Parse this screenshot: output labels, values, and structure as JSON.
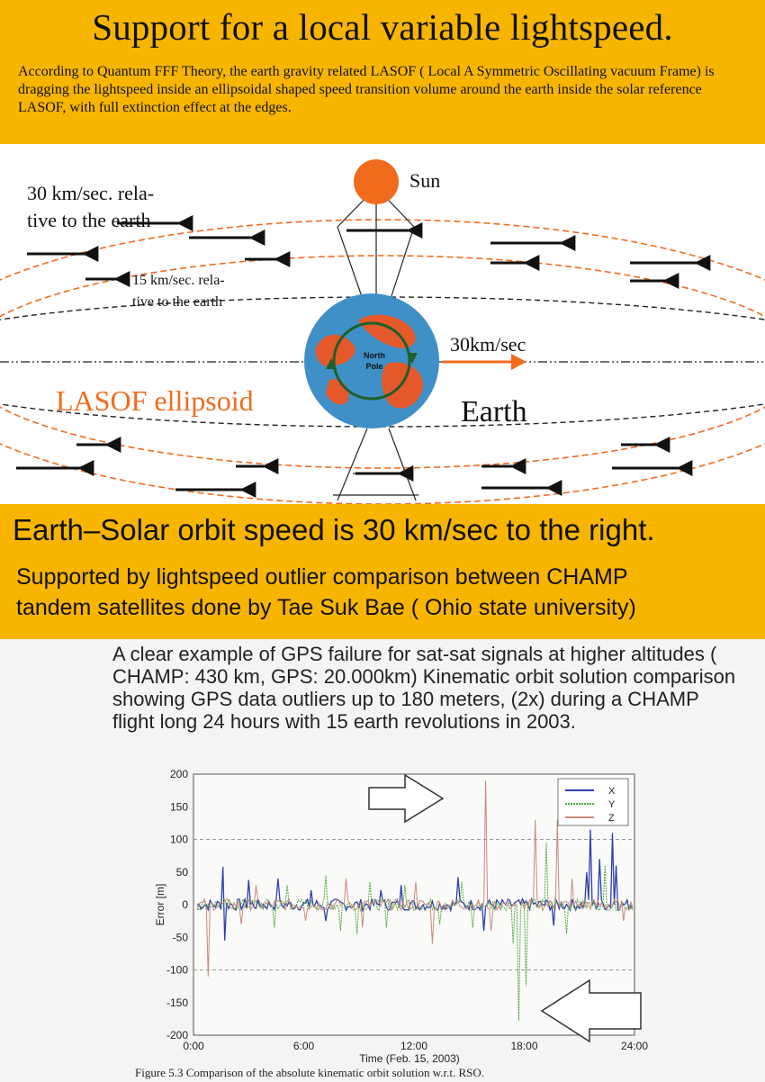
{
  "header": {
    "title": "Support for a local variable lightspeed.",
    "intro": "According to Quantum FFF Theory,  the earth gravity related LASOF ( Local A Symmetric Oscillating vacuum Frame) is dragging the lightspeed inside an ellipsoidal shaped speed transition volume around the earth inside the solar reference LASOF, with full extinction effect at the edges."
  },
  "diagram": {
    "sun_label": "Sun",
    "outer_speed_line1": "30 km/sec. rela-",
    "outer_speed_line2": "tive to the earth",
    "inner_speed_line1": "15 km/sec. rela-",
    "inner_speed_line2": "tive to the earth",
    "orbit_speed_label": "30km/sec",
    "ellipsoid_label": "LASOF ellipsoid",
    "earth_label": "Earth",
    "pole_label_line1": "North",
    "pole_label_line2": "Pole",
    "colors": {
      "orange": "#f26b1d",
      "ocean": "#3f90c6",
      "land": "#e4582a",
      "arrow": "#111111"
    }
  },
  "middle": {
    "orbit_statement": "Earth–Solar orbit speed is 30 km/sec to the right.",
    "support_line1": "Supported by lightspeed outlier comparison between CHAMP",
    "support_line2": "tandem satellites done by Tae Suk Bae ( Ohio state university)"
  },
  "scan": {
    "description": "A clear example of GPS failure for sat-sat signals at higher altitudes ( CHAMP: 430 km, GPS: 20.000km) Kinematic orbit solution comparison showing GPS data outliers up to 180 meters, (2x) during a CHAMP flight long 24 hours with 15 earth revolutions in 2003.",
    "figure_caption": "Figure 5.3 Comparison of the absolute kinematic orbit solution w.r.t. RSO."
  },
  "chart_data": {
    "type": "line",
    "title": "",
    "xlabel": "Time (Feb. 15, 2003)",
    "ylabel": "Error [m]",
    "xlim": [
      0,
      24
    ],
    "ylim": [
      -200,
      200
    ],
    "x_ticks": [
      "0:00",
      "6:00",
      "12:00",
      "18:00",
      "24:00"
    ],
    "y_ticks": [
      200,
      150,
      100,
      50,
      0,
      -50,
      -100,
      -150,
      -200
    ],
    "legend_position": "top-right",
    "series": [
      {
        "name": "X",
        "color": "#2b3fb0",
        "spikes": [
          [
            1.6,
            58
          ],
          [
            1.7,
            -55
          ],
          [
            3.0,
            38
          ],
          [
            4.6,
            40
          ],
          [
            6.4,
            22
          ],
          [
            7.2,
            -25
          ],
          [
            10.2,
            22
          ],
          [
            11.3,
            30
          ],
          [
            14.4,
            42
          ],
          [
            15.8,
            -40
          ],
          [
            19.6,
            -32
          ],
          [
            21.4,
            50
          ],
          [
            21.6,
            115
          ],
          [
            22.1,
            70
          ],
          [
            22.8,
            110
          ],
          [
            23.0,
            60
          ]
        ]
      },
      {
        "name": "Y",
        "color": "#4caa3a",
        "spikes": [
          [
            4.4,
            -35
          ],
          [
            5.1,
            30
          ],
          [
            7.2,
            45
          ],
          [
            8.0,
            -40
          ],
          [
            8.9,
            -45
          ],
          [
            9.6,
            35
          ],
          [
            10.5,
            -35
          ],
          [
            11.5,
            30
          ],
          [
            13.4,
            -30
          ],
          [
            14.6,
            35
          ],
          [
            15.2,
            -35
          ],
          [
            17.4,
            -60
          ],
          [
            17.7,
            -178
          ],
          [
            18.1,
            -125
          ],
          [
            19.2,
            95
          ],
          [
            20.3,
            -45
          ],
          [
            22.4,
            60
          ]
        ]
      },
      {
        "name": "Z",
        "color": "#c98a7a",
        "spikes": [
          [
            0.8,
            -110
          ],
          [
            2.6,
            -30
          ],
          [
            3.4,
            30
          ],
          [
            6.1,
            -25
          ],
          [
            8.3,
            40
          ],
          [
            9.2,
            -35
          ],
          [
            12.1,
            35
          ],
          [
            13.0,
            -60
          ],
          [
            15.9,
            190
          ],
          [
            16.2,
            -40
          ],
          [
            18.6,
            130
          ],
          [
            19.8,
            130
          ],
          [
            20.6,
            40
          ],
          [
            23.4,
            -25
          ]
        ]
      }
    ]
  }
}
